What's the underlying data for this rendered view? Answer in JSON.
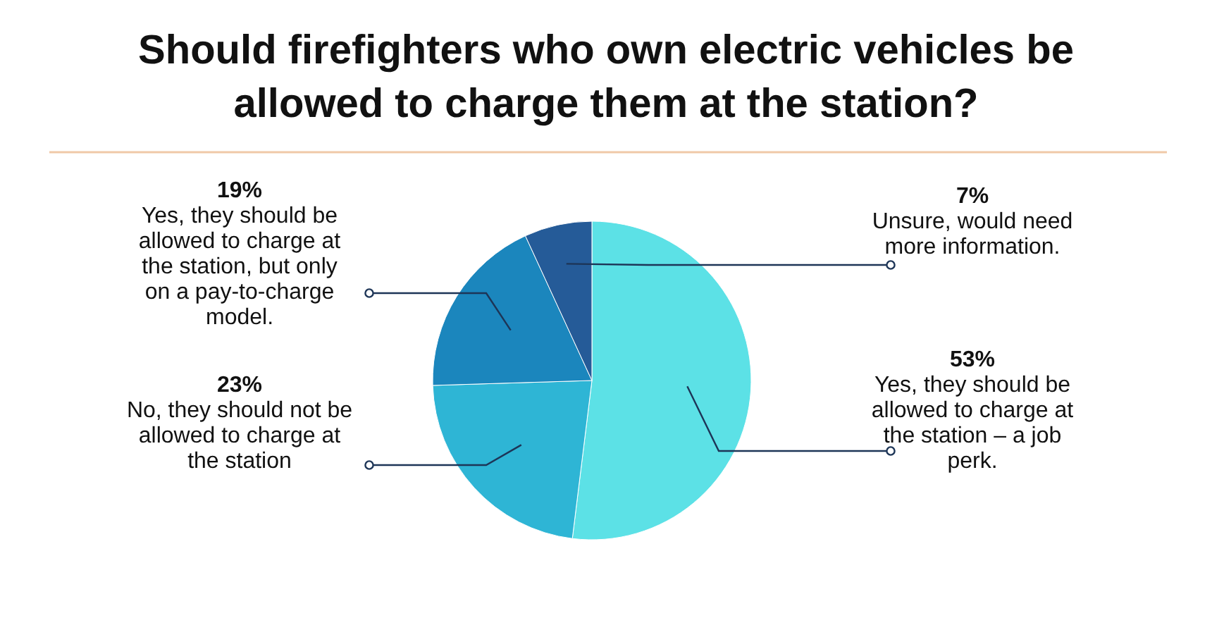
{
  "chart_data": {
    "type": "pie",
    "title": "Should firefighters who own electric vehicles be allowed to charge them at the station?",
    "categories": [
      "Yes, they should be allowed to charge at the station – a job perk.",
      "No, they should not be allowed to charge at the station",
      "Yes, they should be allowed to charge at the station, but only on a pay-to-charge model.",
      "Unsure, would need more information."
    ],
    "values": [
      53,
      23,
      19,
      7
    ],
    "colors": [
      "#5ce1e6",
      "#2eb5d5",
      "#1b86bd",
      "#255b98"
    ],
    "value_labels": [
      "53%",
      "23%",
      "19%",
      "7%"
    ]
  }
}
